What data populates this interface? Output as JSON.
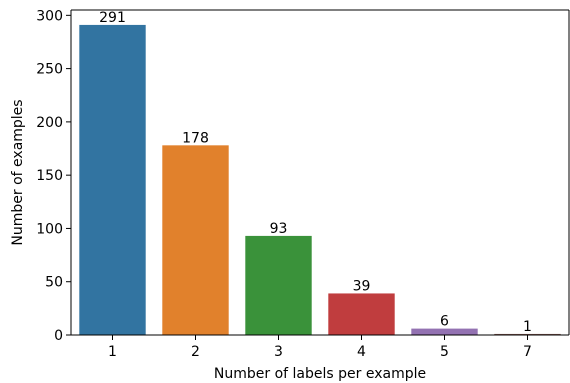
{
  "chart_data": {
    "type": "bar",
    "categories": [
      "1",
      "2",
      "3",
      "4",
      "5",
      "7"
    ],
    "values": [
      291,
      178,
      93,
      39,
      6,
      1
    ],
    "data_labels": [
      "291",
      "178",
      "93",
      "39",
      "6",
      "1"
    ],
    "colors": [
      "#3274a1",
      "#e1812c",
      "#3a923a",
      "#c03d3e",
      "#9372b2",
      "#845b53"
    ],
    "title": "",
    "xlabel": "Number of labels per example",
    "ylabel": "Number of examples",
    "ylim": [
      0,
      305
    ],
    "yticks": [
      0,
      50,
      100,
      150,
      200,
      250,
      300
    ],
    "ytick_labels": [
      "0",
      "50",
      "100",
      "150",
      "200",
      "250",
      "300"
    ],
    "grid": false,
    "legend": "none"
  }
}
